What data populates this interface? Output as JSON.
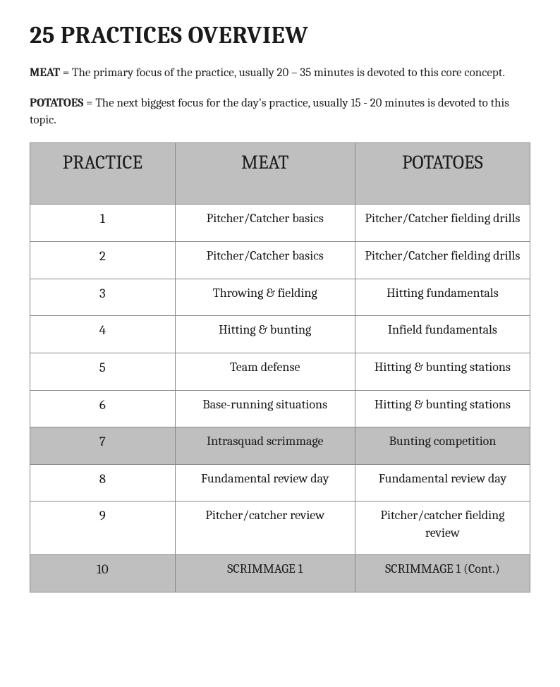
{
  "title": "25 PRACTICES OVERVIEW",
  "definitions": [
    {
      "term": "MEAT",
      "desc": " = The primary focus of the practice, usually 20 – 35 minutes is devoted to this core concept."
    },
    {
      "term": "POTATOES",
      "desc": " = The next biggest focus for the day's practice, usually 15 - 20 minutes is devoted to this topic."
    }
  ],
  "table": {
    "headers": [
      "PRACTICE",
      "MEAT",
      "POTATOES"
    ],
    "header_bg": "#bfbfbf",
    "border_color": "#888888",
    "shaded_bg": "#bfbfbf",
    "header_fontsize": 27,
    "cell_fontsize": 18,
    "rows": [
      {
        "n": "1",
        "meat": "Pitcher/Catcher basics",
        "pot": "Pitcher/Catcher fielding drills",
        "shaded": false
      },
      {
        "n": "2",
        "meat": "Pitcher/Catcher basics",
        "pot": "Pitcher/Catcher fielding drills",
        "shaded": false
      },
      {
        "n": "3",
        "meat": "Throwing & fielding",
        "pot": "Hitting fundamentals",
        "shaded": false
      },
      {
        "n": "4",
        "meat": "Hitting & bunting",
        "pot": "Infield fundamentals",
        "shaded": false
      },
      {
        "n": "5",
        "meat": "Team defense",
        "pot": "Hitting & bunting stations",
        "shaded": false
      },
      {
        "n": "6",
        "meat": "Base-running situations",
        "pot": "Hitting & bunting stations",
        "shaded": false
      },
      {
        "n": "7",
        "meat": "Intrasquad scrimmage",
        "pot": "Bunting competition",
        "shaded": true
      },
      {
        "n": "8",
        "meat": "Fundamental review day",
        "pot": "Fundamental review day",
        "shaded": false
      },
      {
        "n": "9",
        "meat": "Pitcher/catcher review",
        "pot": "Pitcher/catcher fielding review",
        "shaded": false
      },
      {
        "n": "10",
        "meat": "SCRIMMAGE 1",
        "pot": "SCRIMMAGE 1 (Cont.)",
        "shaded": true
      }
    ]
  }
}
